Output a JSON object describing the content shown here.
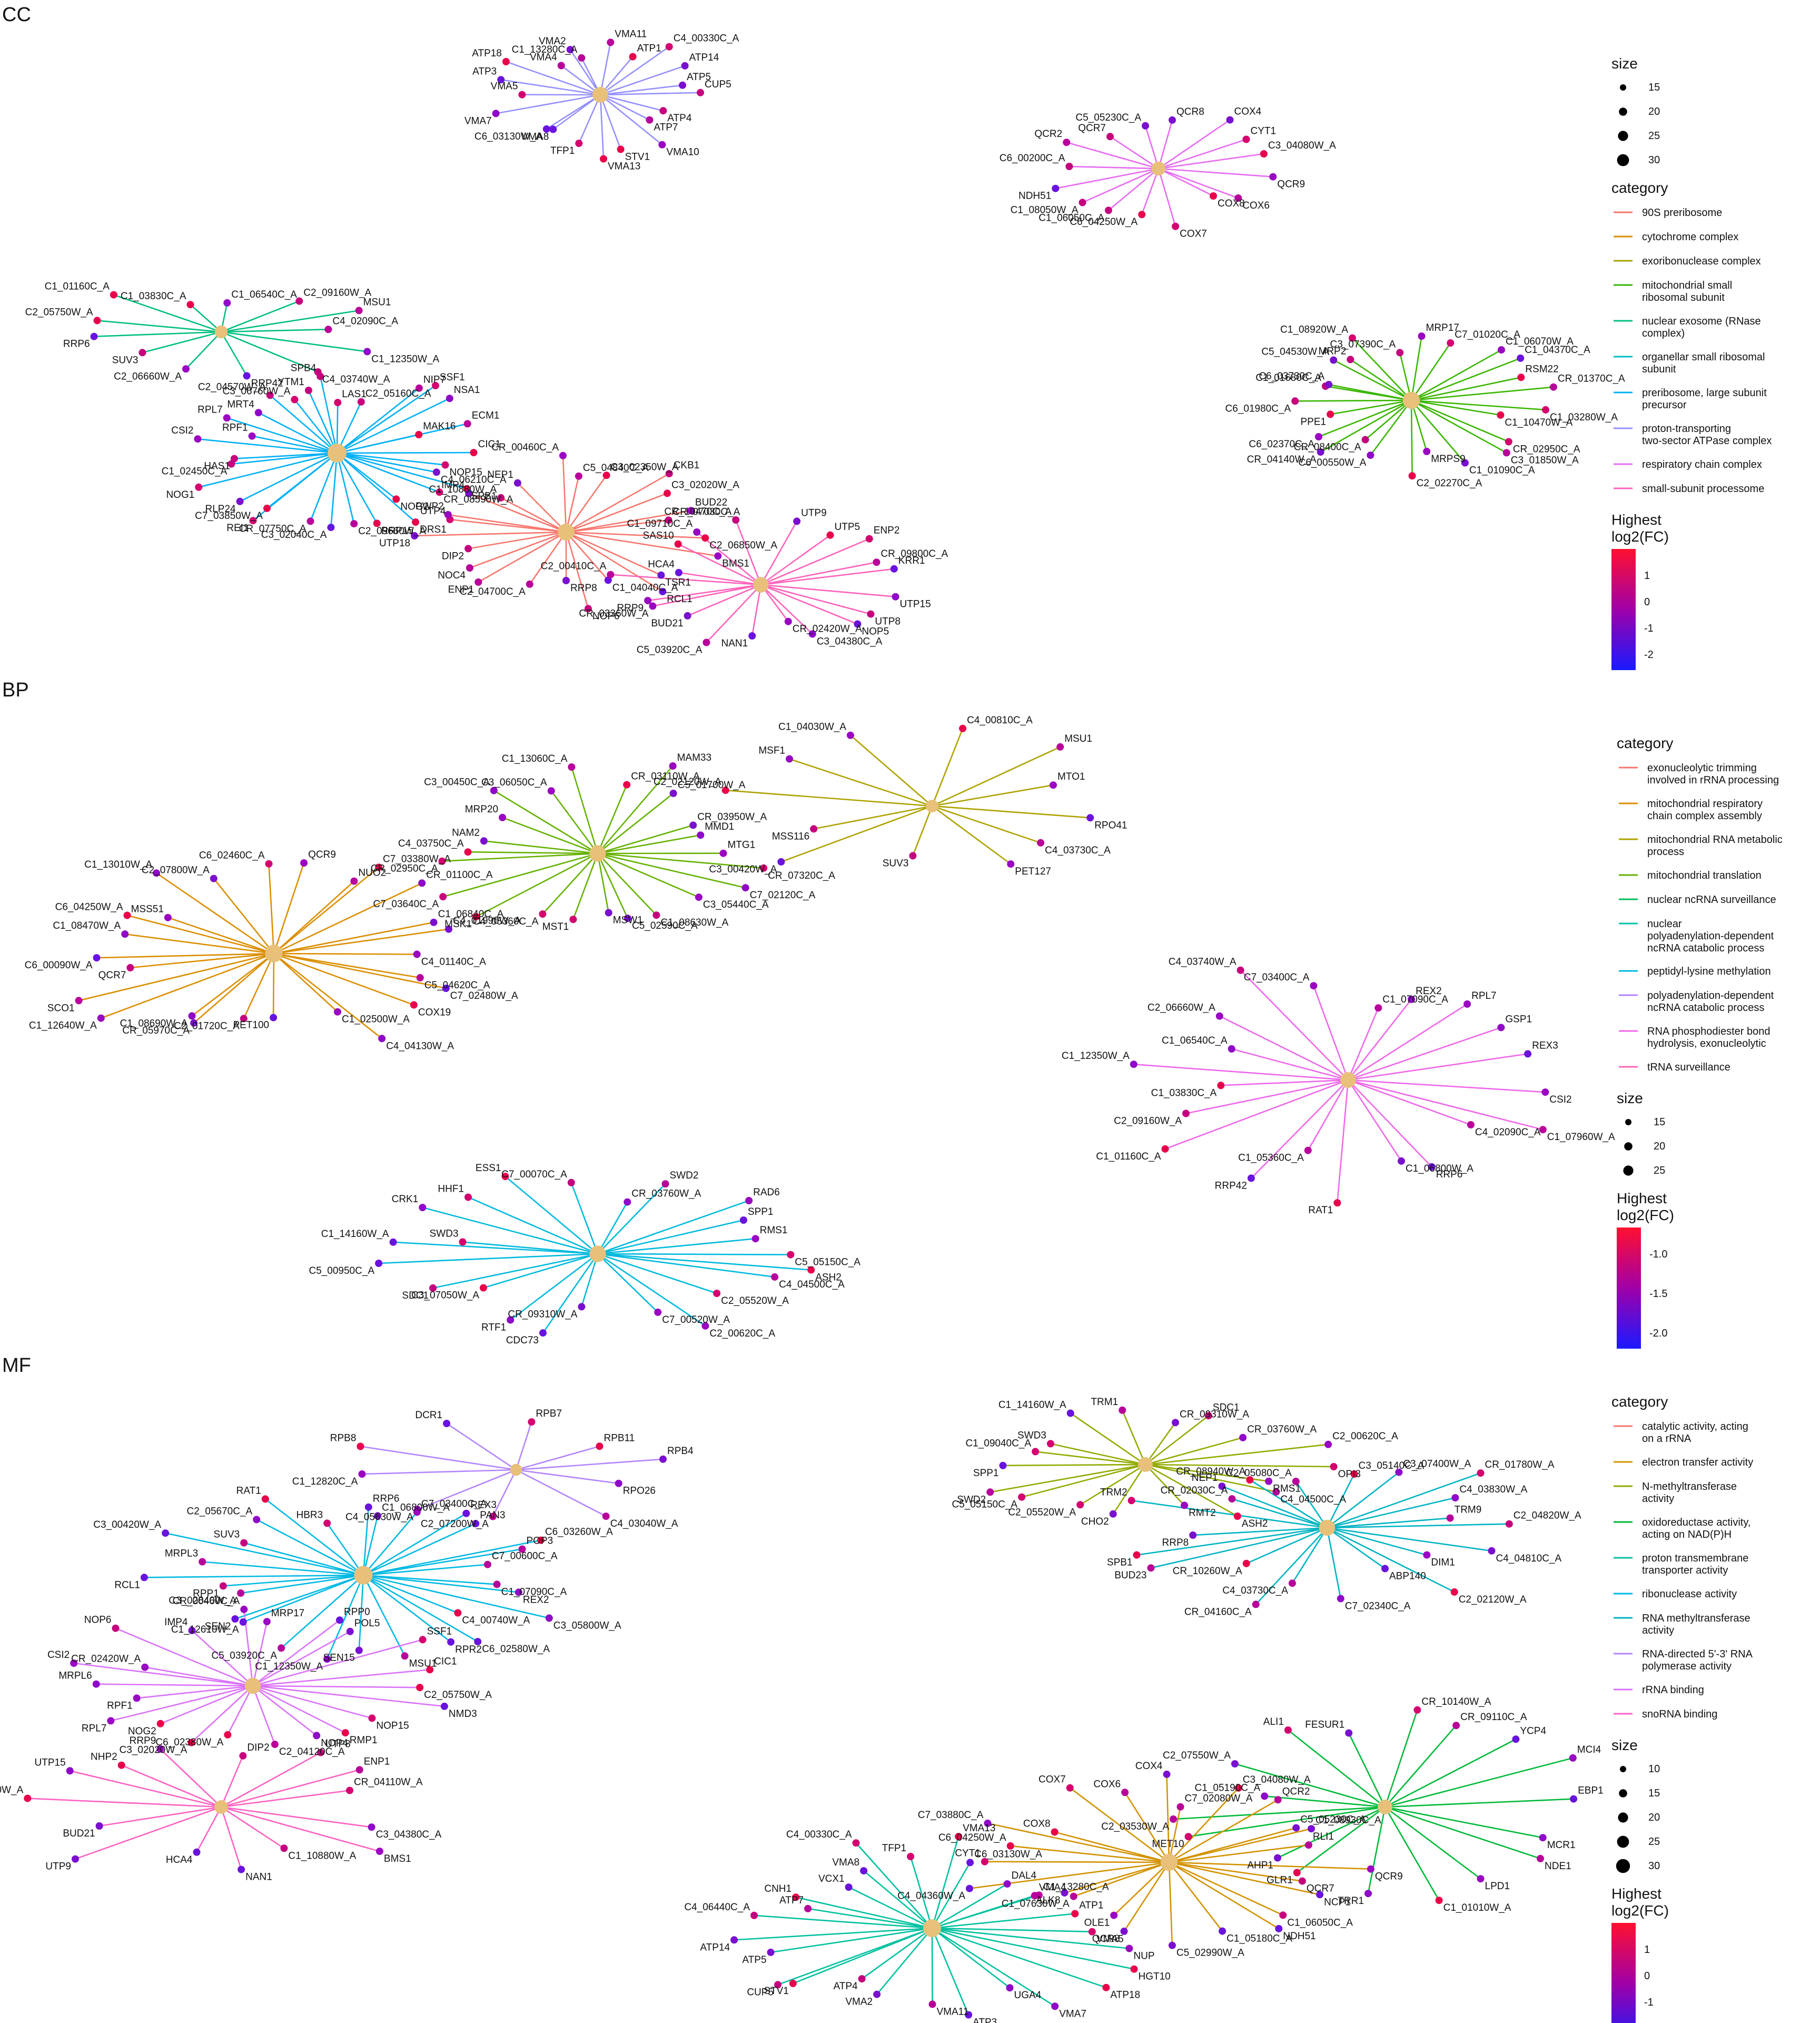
{
  "panels": {
    "cc": {
      "label": "CC",
      "legend": {
        "size_title": "size",
        "size_values": [
          "15",
          "20",
          "25",
          "30"
        ],
        "category_title": "category",
        "categories": [
          {
            "name": "90S preribosome",
            "color": "#F8766D"
          },
          {
            "name": "cytochrome complex",
            "color": "#D89000"
          },
          {
            "name": "exoribonuclease complex",
            "color": "#A3A500"
          },
          {
            "name": "mitochondrial small ribosomal subunit",
            "color": "#39B600"
          },
          {
            "name": "nuclear exosome (RNase complex)",
            "color": "#00BF7D"
          },
          {
            "name": "organellar small ribosomal subunit",
            "color": "#00BFC4"
          },
          {
            "name": "preribosome, large subunit precursor",
            "color": "#00B0F6"
          },
          {
            "name": "proton-transporting two-sector ATPase complex",
            "color": "#9590FF"
          },
          {
            "name": "respiratory chain complex",
            "color": "#E76BF3"
          },
          {
            "name": "small-subunit processome",
            "color": "#FF62BC"
          }
        ],
        "fc_title": "Highest log2(FC)",
        "fc_ticks": [
          "1",
          "0",
          "-1",
          "-2"
        ]
      },
      "clusters": [
        {
          "category": 7,
          "genes": [
            "VMA11",
            "ATP1",
            "C4_00330C_A",
            "ATP14",
            "ATP5",
            "CUP5",
            "ATP4",
            "ATP7",
            "VMA10",
            "STV1",
            "VMA13",
            "TFP1",
            "VMA8",
            "C6_03130W_A",
            "VMA7",
            "VMA5",
            "ATP3",
            "ATP18",
            "VMA4",
            "VMA2",
            "C1_13280C_A"
          ]
        },
        {
          "category": 8,
          "genes": [
            "QCR8",
            "COX4",
            "CYT1",
            "C3_04080W_A",
            "QCR9",
            "COX6",
            "COX8",
            "COX7",
            "C6_04250W_A",
            "C1_06050C_A",
            "C1_08050W_A",
            "NDH51",
            "C6_00200C_A",
            "QCR2",
            "QCR7",
            "C5_05230C_A"
          ]
        },
        {
          "category": 4,
          "genes": [
            "C1_06540C_A",
            "C2_09160W_A",
            "MSU1",
            "C4_02090C_A",
            "C1_12350W_A",
            "C4_03740W_A",
            "RRP42",
            "C2_06660W_A",
            "SUV3",
            "RRP6",
            "C2_05750W_A",
            "C1_01160C_A",
            "C1_03830C_A"
          ]
        },
        {
          "category": 3,
          "genes": [
            "MRP17",
            "C7_01020C_A",
            "C1_06070W_A",
            "C1_04370C_A",
            "RSM22",
            "CR_01370C_A",
            "C1_03280W_A",
            "C1_10470W_A",
            "CR_02950C_A",
            "C3_01850W_A",
            "C1_01090C_A",
            "MRPS9",
            "C2_02270C_A",
            "C6_00550W_A",
            "CR_08400C_A",
            "CR_04140W_A",
            "C6_02370C_A",
            "PPE1",
            "C6_01980C_A",
            "C1_01680C_A",
            "C6_03730C_A",
            "C5_04530W_A",
            "MRP2",
            "C1_08920W_A",
            "C3_07390C_A"
          ]
        },
        {
          "category": 6,
          "genes": [
            "LAS1",
            "C2_05160C_A",
            "NIP7",
            "SSF1",
            "NSA1",
            "MAK16",
            "ECM1",
            "CIC1",
            "NOP15",
            "C4_06210C_A",
            "SPB1",
            "CR_08590W_A",
            "NOG2",
            "DRS1",
            "RRP15",
            "C2_09660W_A",
            "C3_02040C_A",
            "CR_07750C_A",
            "REI1",
            "C7_03850W_A",
            "RLP24",
            "NOG1",
            "C1_02450C_A",
            "HAS1",
            "CSI2",
            "RPF1",
            "RPL7",
            "MRT4",
            "C2_04570W_A",
            "C3_06760W_A",
            "YTM1",
            "SPB4"
          ]
        },
        {
          "category": 0,
          "genes": [
            "C5_04840C_A",
            "C3_02350W_A",
            "CKB1",
            "C3_02020W_A",
            "BUD22",
            "CR_07030C_A",
            "C2_06850W_A",
            "BMS1",
            "TSR1",
            "RCL1",
            "C1_04040C_A",
            "NOP6",
            "RRP8",
            "C2_04700C_A",
            "ENP1",
            "NOC4",
            "DIP2",
            "UTP18",
            "UTP4",
            "PWP2",
            "IMP4",
            "C1_10880W_A",
            "NEP1",
            "CR_00460C_A"
          ]
        },
        {
          "category": 9,
          "genes": [
            "UTP9",
            "UTP5",
            "ENP2",
            "CR_09800C_A",
            "KRR1",
            "UTP15",
            "UTP8",
            "NOP5",
            "C3_04380C_A",
            "CR_02420W_A",
            "NAN1",
            "C5_03920C_A",
            "BUD21",
            "CR_03360W_A",
            "RRP9",
            "C2_00410C_A",
            "HCA4",
            "SAS10",
            "C1_09710C_A",
            "CR_10470C_A"
          ]
        }
      ]
    },
    "bp": {
      "label": "BP",
      "legend": {
        "category_title": "category",
        "categories": [
          {
            "name": "exonucleolytic trimming involved in rRNA processing",
            "color": "#F8766D"
          },
          {
            "name": "mitochondrial respiratory chain complex assembly",
            "color": "#DB8E00"
          },
          {
            "name": "mitochondrial RNA metabolic process",
            "color": "#AEA200"
          },
          {
            "name": "mitochondrial translation",
            "color": "#64B200"
          },
          {
            "name": "nuclear ncRNA surveillance",
            "color": "#00BD5C"
          },
          {
            "name": "nuclear polyadenylation-dependent ncRNA catabolic process",
            "color": "#00C1A7"
          },
          {
            "name": "peptidyl-lysine methylation",
            "color": "#00BADE"
          },
          {
            "name": "polyadenylation-dependent ncRNA catabolic process",
            "color": "#B385FF"
          },
          {
            "name": "RNA phosphodiester bond hydrolysis, exonucleolytic",
            "color": "#EF67EB"
          },
          {
            "name": "tRNA surveillance",
            "color": "#FF63B6"
          }
        ],
        "size_title": "size",
        "size_values": [
          "15",
          "20",
          "25"
        ],
        "fc_title": "Highest log2(FC)",
        "fc_ticks": [
          "-1.0",
          "-1.5",
          "-2.0"
        ]
      },
      "clusters": [
        {
          "category": 2,
          "genes": [
            "C4_00810C_A",
            "MSU1",
            "MTO1",
            "RPO41",
            "C4_03730C_A",
            "PET127",
            "SUV3",
            "C3_00420W_A",
            "MSS116",
            "C2_02120W_A",
            "MSF1",
            "C1_04030W_A"
          ]
        },
        {
          "category": 3,
          "genes": [
            "CR_03110W_A",
            "MAM33",
            "C5_01700W_A",
            "CR_03950W_A",
            "MMD1",
            "MTG1",
            "CR_07320C_A",
            "C7_02120C_A",
            "C3_05440C_A",
            "C1_08630W_A",
            "C5_02590C_A",
            "MSW1",
            "MST1",
            "C4_05360C_A",
            "MSK1",
            "C7_03640C_A",
            "CR_02950C_A",
            "C4_03750C_A",
            "NAM2",
            "MRP20",
            "C3_00450C_A",
            "C3_06050C_A",
            "C1_13060C_A"
          ]
        },
        {
          "category": 1,
          "genes": [
            "QCR9",
            "NUO2",
            "C7_03380W_A",
            "CR_01100C_A",
            "C1_06840C_A",
            "C4_01990W_A",
            "C4_01140C_A",
            "C5_04620C_A",
            "C7_02480W_A",
            "COX19",
            "C4_04130W_A",
            "C1_02500W_A",
            "PET100",
            "C2_01720C_A",
            "CR_05970C_A",
            "C1_08690W_A",
            "C1_12640W_A",
            "SCO1",
            "QCR7",
            "C6_00090W_A",
            "C1_08470W_A",
            "C6_04250W_A",
            "MSS51",
            "C1_13010W_A",
            "C2_07800W_A",
            "C6_02460C_A"
          ]
        },
        {
          "category": 6,
          "genes": [
            "CR_03760W_A",
            "SWD2",
            "RAD6",
            "SPP1",
            "RMS1",
            "C5_05150C_A",
            "ASH2",
            "C4_04500C_A",
            "C2_05520W_A",
            "C2_00620C_A",
            "C7_00520W_A",
            "CR_09310W_A",
            "CDC73",
            "RTF1",
            "C3_07050W_A",
            "SDC1",
            "C5_00950C_A",
            "C1_14160W_A",
            "SWD3",
            "CRK1",
            "HHF1",
            "ESS1",
            "C7_00070C_A"
          ]
        },
        {
          "category": 8,
          "genes": [
            "C1_07090C_A",
            "REX2",
            "RPL7",
            "GSP1",
            "REX3",
            "CSI2",
            "C1_07960W_A",
            "C4_02090C_A",
            "RRP6",
            "C1_06800W_A",
            "RAT1",
            "C1_05360C_A",
            "RRP42",
            "C1_01160C_A",
            "C2_09160W_A",
            "C1_03830C_A",
            "C1_12350W_A",
            "C1_06540C_A",
            "C2_06660W_A",
            "C4_03740W_A",
            "C7_03400C_A"
          ]
        }
      ]
    },
    "mf": {
      "label": "MF",
      "legend": {
        "category_title": "category",
        "categories": [
          {
            "name": "catalytic activity, acting on a rRNA",
            "color": "#F8766D"
          },
          {
            "name": "electron transfer activity",
            "color": "#D39200"
          },
          {
            "name": "N-methyltransferase activity",
            "color": "#93AA00"
          },
          {
            "name": "oxidoreductase activity, acting on NAD(P)H",
            "color": "#00BA38"
          },
          {
            "name": "proton transmembrane transporter activity",
            "color": "#00C19F"
          },
          {
            "name": "ribonuclease activity",
            "color": "#00B9E3"
          },
          {
            "name": "RNA methyltransferase activity",
            "color": "#00B4C4"
          },
          {
            "name": "RNA-directed 5'-3' RNA polymerase activity",
            "color": "#B385FF"
          },
          {
            "name": "rRNA binding",
            "color": "#DB72FB"
          },
          {
            "name": "snoRNA binding",
            "color": "#FF61C3"
          }
        ],
        "size_title": "size",
        "size_values": [
          "10",
          "15",
          "20",
          "25",
          "30"
        ],
        "fc_title": "Highest log2(FC)",
        "fc_ticks": [
          "1",
          "0",
          "-1",
          "-2"
        ]
      },
      "clusters": [
        {
          "category": 7,
          "genes": [
            "RPB7",
            "RPB11",
            "RPB4",
            "RPO26",
            "C4_03040W_A",
            "C2_07200W_A",
            "C4_05630W_A",
            "C1_12820C_A",
            "RPB8",
            "DCR1"
          ]
        },
        {
          "category": 5,
          "genes": [
            "C1_06800W_A",
            "C7_03400C_A",
            "REX3",
            "PAN3",
            "C6_03260W_A",
            "POP3",
            "C7_00600C_A",
            "C1_07090C_A",
            "REX2",
            "C3_05800W_A",
            "C4_00740W_A",
            "C6_02580W_A",
            "RPR2",
            "MSU1",
            "SEN15",
            "C1_12350W_A",
            "C5_03920C_A",
            "C1_12610W_A",
            "SEN2",
            "C3_02840W_A",
            "RPP1",
            "RCL1",
            "MRPL3",
            "C3_00420W_A",
            "SUV3",
            "C2_05670C_A",
            "RAT1",
            "HBR3",
            "RRP6"
          ]
        },
        {
          "category": 8,
          "genes": [
            "MRP17",
            "RPP0",
            "POL5",
            "SSF1",
            "CIC1",
            "C2_05750W_A",
            "NMD3",
            "NOP15",
            "RMP1",
            "NOP4",
            "C2_04120C_A",
            "C6_02380W_A",
            "C3_02020W_A",
            "NOG2",
            "RPL7",
            "RPF1",
            "MRPL6",
            "CSI2",
            "CR_02420W_A",
            "NOP6",
            "IMP4",
            "CR_00460C_A"
          ]
        },
        {
          "category": 9,
          "genes": [
            "DIP2",
            "UTP8",
            "ENP1",
            "CR_04110W_A",
            "C3_04380C_A",
            "BMS1",
            "C1_10880W_A",
            "NAN1",
            "HCA4",
            "UTP9",
            "BUD21",
            "C2_07040W_A",
            "UTP15",
            "NHP2",
            "RRP9"
          ]
        },
        {
          "category": 2,
          "genes": [
            "CR_09310W_A",
            "SDC1",
            "CR_03760W_A",
            "C2_00620C_A",
            "OPI3",
            "RMS1",
            "C4_04500C_A",
            "ASH2",
            "RMT2",
            "CHO2",
            "C2_05520W_A",
            "C5_05150C_A",
            "SWD2",
            "SPP1",
            "C1_09040C_A",
            "SWD3",
            "C1_14160W_A",
            "TRM1"
          ]
        },
        {
          "category": 6,
          "genes": [
            "C3_05140C_A",
            "C3_07400W_A",
            "CR_01780W_A",
            "C4_03830W_A",
            "TRM9",
            "C2_04820W_A",
            "C4_04810C_A",
            "DIM1",
            "C2_02120W_A",
            "ABP140",
            "C7_02340C_A",
            "C4_03730C_A",
            "CR_04160C_A",
            "CR_10260W_A",
            "BUD23",
            "SPB1",
            "RRP8",
            "TRM2",
            "CR_02030C_A",
            "NEP1",
            "CR_08940W_A",
            "C2_05080C_A"
          ]
        },
        {
          "category": 3,
          "genes": [
            "CR_10140W_A",
            "CR_09110C_A",
            "YCP4",
            "MCI4",
            "EBP1",
            "MCR1",
            "NDE1",
            "LPD1",
            "C1_01010W_A",
            "TRR1",
            "GLR1",
            "AHP1",
            "MET10",
            "C2_03530W_A",
            "C1_05190C_A",
            "C2_07550W_A",
            "ALI1",
            "FESUR1"
          ]
        },
        {
          "category": 1,
          "genes": [
            "C7_02080W_A",
            "C3_04080W_A",
            "QCR2",
            "C5_05230C_A",
            "C1_08930C_A",
            "RLI1",
            "QCR9",
            "QCR7",
            "NCP1",
            "C1_06050C_A",
            "NDH51",
            "C1_05180C_A",
            "C5_02990W_A",
            "QCR8",
            "OLE1",
            "C1_07630W_A",
            "ALK8",
            "C4_04360W_A",
            "CYT1",
            "C6_04250W_A",
            "C7_03880C_A",
            "COX8",
            "COX7",
            "COX6",
            "COX4"
          ]
        },
        {
          "category": 4,
          "genes": [
            "VMA13",
            "C6_03130W_A",
            "DAL4",
            "VMA4",
            "C1_13280C_A",
            "ATP1",
            "VMA5",
            "NUP",
            "HGT10",
            "ATP18",
            "VMA7",
            "UGA4",
            "ATP3",
            "VMA11",
            "VMA2",
            "ATP4",
            "STV1",
            "CUP5",
            "ATP5",
            "ATP14",
            "C4_06440C_A",
            "ATP7",
            "CNH1",
            "VCX1",
            "VMA8",
            "C4_00330C_A",
            "TFP1"
          ]
        }
      ]
    }
  }
}
